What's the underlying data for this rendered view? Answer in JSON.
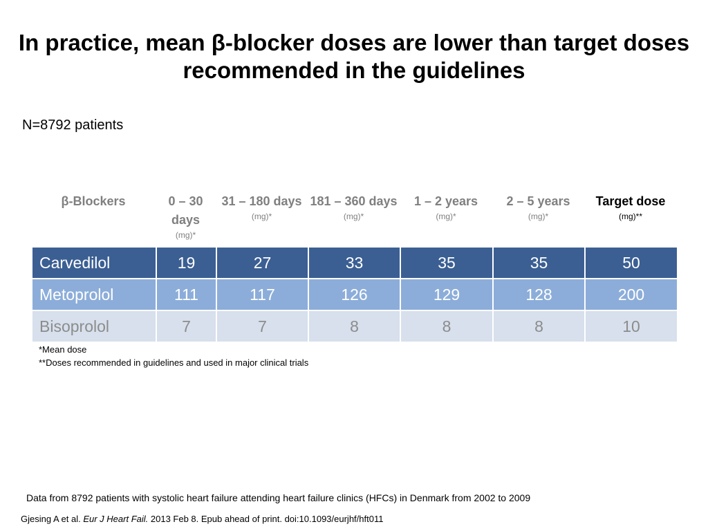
{
  "title": "In practice, mean β-blocker doses are lower than target doses recommended in the guidelines",
  "subtitle": "N=8792 patients",
  "table": {
    "headers": [
      {
        "label": "β-Blockers",
        "unit": ""
      },
      {
        "label": "0 – 30 days",
        "unit": "(mg)*"
      },
      {
        "label": "31 – 180 days",
        "unit": "(mg)*"
      },
      {
        "label": "181 – 360 days",
        "unit": "(mg)*"
      },
      {
        "label": "1 – 2 years",
        "unit": "(mg)*"
      },
      {
        "label": "2 – 5 years",
        "unit": "(mg)*"
      },
      {
        "label": "Target dose",
        "unit": "(mg)**"
      }
    ],
    "rows": [
      {
        "drug": "Carvedilol",
        "values": [
          "19",
          "27",
          "33",
          "35",
          "35",
          "50"
        ]
      },
      {
        "drug": "Metoprolol",
        "values": [
          "111",
          "117",
          "126",
          "129",
          "128",
          "200"
        ]
      },
      {
        "drug": "Bisoprolol",
        "values": [
          "7",
          "7",
          "8",
          "8",
          "8",
          "10"
        ]
      }
    ]
  },
  "footnotes": [
    "*Mean dose",
    "**Doses recommended in guidelines and used in major clinical trials"
  ],
  "source": "Data from 8792 patients with systolic heart failure attending heart failure clinics (HFCs) in Denmark from 2002 to 2009",
  "citation": {
    "prefix": "Gjesing A et al. ",
    "journal": "Eur J Heart Fail.",
    "suffix": " 2013 Feb 8. Epub ahead of print. doi:10.1093/eurjhf/hft011"
  },
  "colors": {
    "row_carvedilol": "#3b5f93",
    "row_metoprolol": "#8cadd9",
    "row_bisoprolol": "#d7e0ec",
    "header_text": "#7f7f7f"
  }
}
